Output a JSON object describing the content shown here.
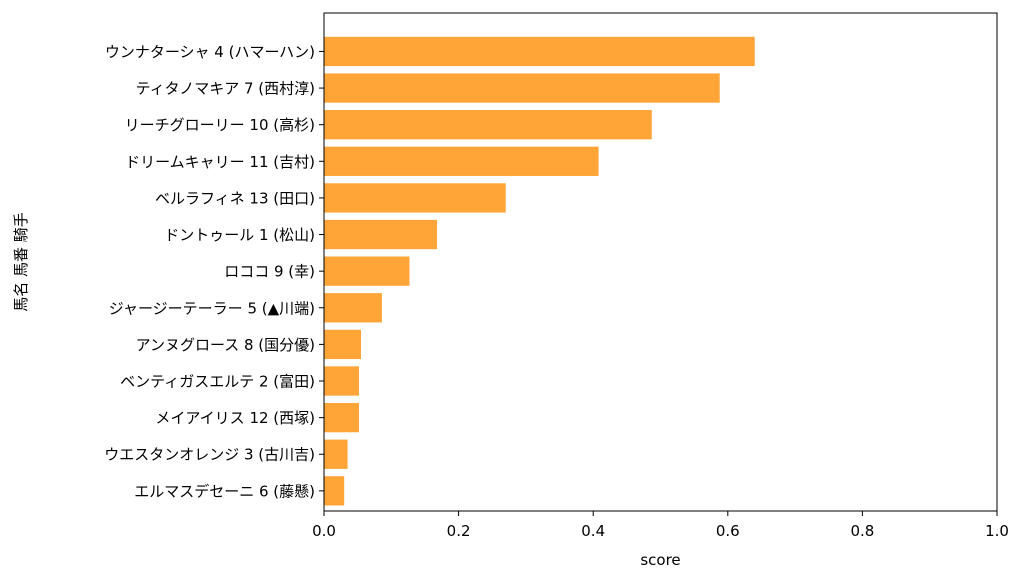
{
  "chart_data": {
    "type": "bar",
    "orientation": "horizontal",
    "categories": [
      "ウンナターシャ 4 (ハマーハン)",
      "ティタノマキア 7 (西村淳)",
      "リーチグローリー 10 (高杉)",
      "ドリームキャリー 11 (吉村)",
      "ベルラフィネ 13 (田口)",
      "ドントゥール 1 (松山)",
      "ロココ 9 (幸)",
      "ジャージーテーラー 5 (▲川端)",
      "アンヌグロース 8 (国分優)",
      "ベンティガスエルテ 2 (富田)",
      "メイアイリス 12 (西塚)",
      "ウエスタンオレンジ 3 (古川吉)",
      "エルマスデセーニ 6 (藤懸)"
    ],
    "values": [
      0.64,
      0.588,
      0.487,
      0.408,
      0.27,
      0.168,
      0.127,
      0.086,
      0.055,
      0.052,
      0.052,
      0.035,
      0.03
    ],
    "xlabel": "score",
    "ylabel": "馬名 馬番 騎手",
    "xlim": [
      0,
      1.0
    ],
    "xticks": [
      "0.0",
      "0.2",
      "0.4",
      "0.6",
      "0.8",
      "1.0"
    ],
    "bar_color": "#ffa436",
    "grid": false
  }
}
